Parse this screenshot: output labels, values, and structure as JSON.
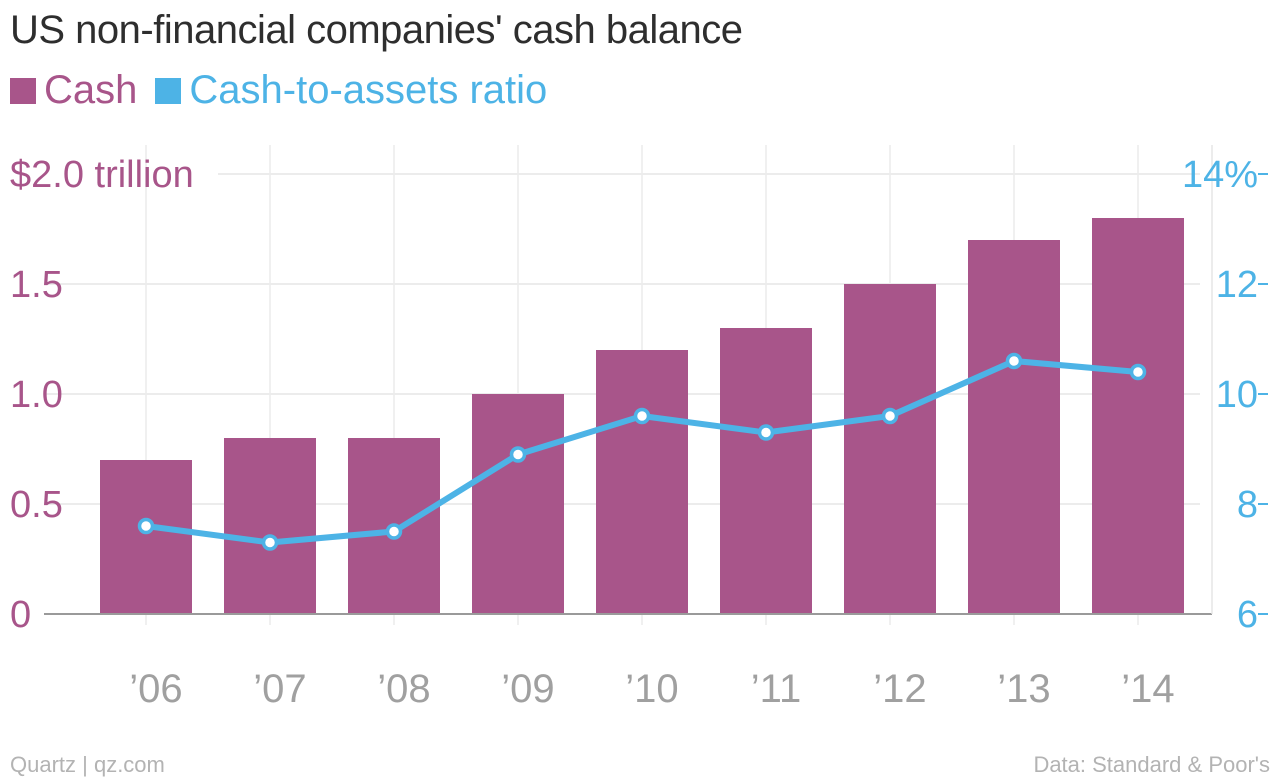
{
  "header": {
    "title": "US non-financial companies' cash balance"
  },
  "legend": [
    {
      "label": "Cash",
      "color": "#a8558a"
    },
    {
      "label": "Cash-to-assets ratio",
      "color": "#4db3e6"
    }
  ],
  "footer": {
    "source_left": "Quartz | qz.com",
    "source_right": "Data: Standard & Poor's"
  },
  "chart_data": {
    "type": "bar",
    "title": "US non-financial companies' cash balance",
    "categories": [
      "’06",
      "’07",
      "’08",
      "’09",
      "’10",
      "’11",
      "’12",
      "’13",
      "’14"
    ],
    "series": [
      {
        "name": "Cash",
        "type": "bar",
        "axis": "left",
        "color": "#a8558a",
        "values": [
          0.7,
          0.8,
          0.8,
          1.0,
          1.2,
          1.3,
          1.5,
          1.7,
          1.8
        ]
      },
      {
        "name": "Cash-to-assets ratio",
        "type": "line",
        "axis": "right",
        "color": "#4db3e6",
        "values": [
          7.6,
          7.3,
          7.5,
          8.9,
          9.6,
          9.3,
          9.6,
          10.6,
          10.4
        ]
      }
    ],
    "y_left": {
      "range": [
        0,
        2.0
      ],
      "ticks": [
        0,
        0.5,
        1.0,
        1.5,
        2.0
      ],
      "tick_labels": [
        "0",
        "0.5",
        "1.0",
        "1.5",
        "$2.0 trillion"
      ]
    },
    "y_right": {
      "range": [
        6,
        14
      ],
      "ticks": [
        6,
        8,
        10,
        12,
        14
      ],
      "tick_labels": [
        "6",
        "8",
        "10",
        "12",
        "14%"
      ]
    },
    "grid": true,
    "legend_position": "top-left"
  }
}
